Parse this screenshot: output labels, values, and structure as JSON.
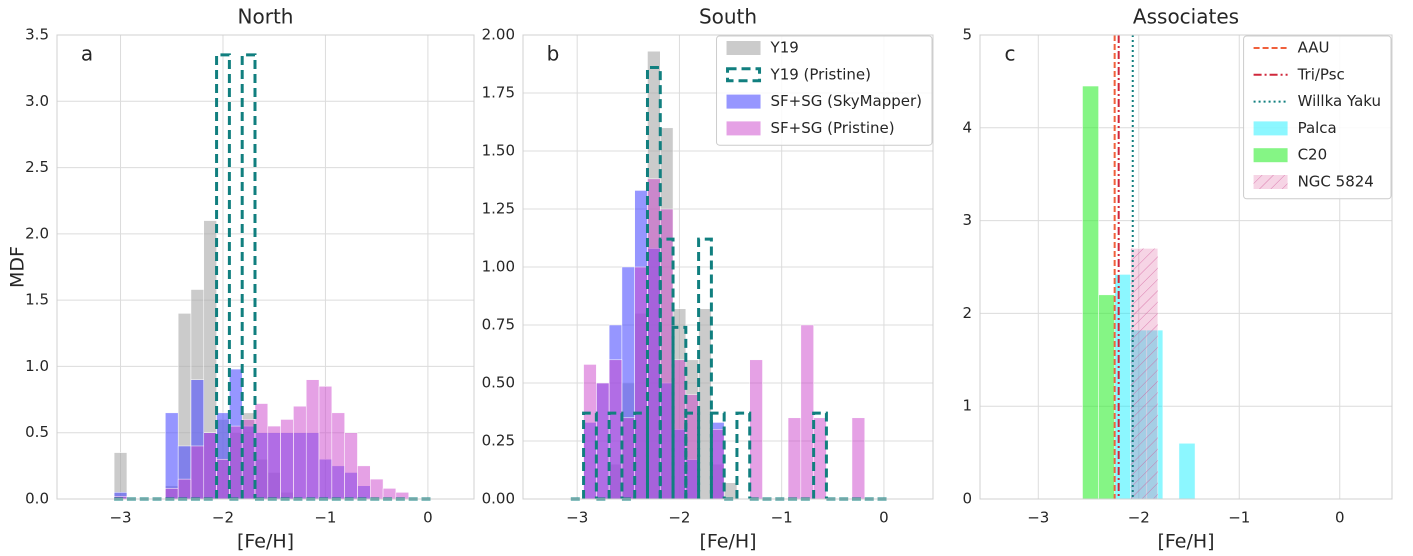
{
  "chart_data": [
    {
      "type": "histogram",
      "title": "North",
      "panel_label": "a",
      "xlabel": "[Fe/H]",
      "ylabel": "MDF",
      "bins": [
        -3.0625,
        -2.9375,
        -2.8125,
        -2.6875,
        -2.5625,
        -2.4375,
        -2.3125,
        -2.1875,
        -2.0625,
        -1.9375,
        -1.8125,
        -1.6875,
        -1.5625,
        -1.4375,
        -1.3125,
        -1.1875,
        -1.0625,
        -0.9375,
        -0.8125,
        -0.6875,
        -0.5625,
        -0.4375,
        -0.3125,
        -0.1875,
        -0.0625,
        0.0625
      ],
      "xlim": [
        -3.62,
        0.45
      ],
      "ylim": [
        0,
        3.5
      ],
      "xticks": [
        {
          "value": -3,
          "label": "−3"
        },
        {
          "value": -2,
          "label": "−2"
        },
        {
          "value": -1,
          "label": "−1"
        },
        0
      ],
      "yticks": [
        {
          "value": 0,
          "label": "0.0"
        },
        0.5,
        {
          "value": 1,
          "label": "1.0"
        },
        1.5,
        {
          "value": 2,
          "label": "2.0"
        },
        2.5,
        {
          "value": 3,
          "label": "3.0"
        },
        3.5
      ],
      "grid": true,
      "series": [
        {
          "color": "#a9a9a9",
          "alpha": 0.6,
          "histtype": "bar",
          "values": [
            0.35,
            0,
            0,
            0,
            0.1,
            1.4,
            1.58,
            2.1,
            0.6,
            0.5,
            0.65,
            0.3,
            0.2,
            0.05,
            0,
            0,
            0,
            0,
            0,
            0,
            0,
            0,
            0,
            0,
            0
          ]
        },
        {
          "color": "#5050ff",
          "alpha": 0.6,
          "histtype": "bar",
          "values": [
            0.05,
            0,
            0,
            0,
            0.65,
            0.4,
            0.9,
            0.5,
            0.65,
            0.98,
            0.55,
            0.5,
            0.5,
            0.5,
            0.5,
            0.5,
            0.3,
            0.25,
            0.2,
            0.1,
            0,
            0,
            0,
            0,
            0
          ]
        },
        {
          "color": "#cc44cc",
          "alpha": 0.5,
          "histtype": "bar",
          "values": [
            0.02,
            0,
            0,
            0,
            0.08,
            0.15,
            0.4,
            0.5,
            0.3,
            0.55,
            0.6,
            0.72,
            0.55,
            0.6,
            0.7,
            0.9,
            0.85,
            0.65,
            0.5,
            0.25,
            0.15,
            0.08,
            0.05,
            0,
            0
          ]
        },
        {
          "color": "#117f7f",
          "histtype": "step",
          "linestyle": "dashed",
          "values": [
            0,
            0,
            0,
            0,
            0,
            0,
            0,
            0,
            3.35,
            0,
            3.35,
            0,
            0,
            0,
            0,
            0,
            0,
            0,
            0,
            0,
            0,
            0,
            0,
            0,
            0
          ]
        }
      ]
    },
    {
      "type": "histogram",
      "title": "South",
      "panel_label": "b",
      "xlabel": "[Fe/H]",
      "legend": "upper right",
      "bins": [
        -3.0625,
        -2.9375,
        -2.8125,
        -2.6875,
        -2.5625,
        -2.4375,
        -2.3125,
        -2.1875,
        -2.0625,
        -1.9375,
        -1.8125,
        -1.6875,
        -1.5625,
        -1.4375,
        -1.3125,
        -1.1875,
        -1.0625,
        -0.9375,
        -0.8125,
        -0.6875,
        -0.5625,
        -0.4375,
        -0.3125,
        -0.1875,
        -0.0625,
        0.0625
      ],
      "xlim": [
        -3.53,
        0.48
      ],
      "ylim": [
        0,
        2.0
      ],
      "xticks": [
        {
          "value": -3,
          "label": "−3"
        },
        {
          "value": -2,
          "label": "−2"
        },
        {
          "value": -1,
          "label": "−1"
        },
        0
      ],
      "yticks": [
        {
          "value": 0,
          "label": "0.00"
        },
        {
          "value": 0.25,
          "label": "0.25"
        },
        {
          "value": 0.5,
          "label": "0.50"
        },
        {
          "value": 0.75,
          "label": "0.75"
        },
        {
          "value": 1,
          "label": "1.00"
        },
        {
          "value": 1.25,
          "label": "1.25"
        },
        {
          "value": 1.5,
          "label": "1.50"
        },
        {
          "value": 1.75,
          "label": "1.75"
        },
        {
          "value": 2,
          "label": "2.00"
        }
      ],
      "grid": true,
      "series": [
        {
          "name": "Y19",
          "color": "#a9a9a9",
          "alpha": 0.6,
          "histtype": "bar",
          "values": [
            0,
            0,
            0,
            0.15,
            0.5,
            0.8,
            1.93,
            1.6,
            0.82,
            0.6,
            0.82,
            0.15,
            0.07,
            0,
            0,
            0,
            0,
            0,
            0,
            0,
            0,
            0,
            0,
            0,
            0
          ]
        },
        {
          "name": "Y19 (Pristine)",
          "color": "#117f7f",
          "histtype": "step",
          "linestyle": "dashed",
          "values": [
            0,
            0.37,
            0,
            0.37,
            0,
            0.37,
            1.86,
            1.12,
            0.74,
            0.37,
            1.12,
            0.37,
            0,
            0.37,
            0,
            0,
            0,
            0,
            0,
            0.37,
            0,
            0,
            0,
            0,
            0
          ]
        },
        {
          "name": "SF+SG (SkyMapper)",
          "color": "#5050ff",
          "alpha": 0.6,
          "histtype": "bar",
          "values": [
            0,
            0.33,
            0.5,
            0.75,
            1.0,
            1.33,
            1.08,
            0.5,
            0.3,
            0.17,
            0,
            0.33,
            0,
            0,
            0,
            0,
            0,
            0,
            0,
            0,
            0,
            0,
            0,
            0,
            0
          ]
        },
        {
          "name": "SF+SG (Pristine)",
          "color": "#cc44cc",
          "alpha": 0.5,
          "histtype": "bar",
          "values": [
            0,
            0.58,
            0.5,
            0.6,
            0.35,
            1.0,
            1.38,
            1.25,
            0.6,
            0.45,
            0,
            0.3,
            0,
            0,
            0.6,
            0,
            0,
            0.35,
            0.75,
            0.35,
            0,
            0,
            0.35,
            0,
            0
          ]
        }
      ]
    },
    {
      "type": "histogram",
      "title": "Associates",
      "panel_label": "c",
      "xlabel": "[Fe/H]",
      "legend": "upper right",
      "bins": [
        -2.56,
        -2.4,
        -2.24,
        -2.08,
        -1.92,
        -1.76,
        -1.6,
        -1.44
      ],
      "xlim": [
        -3.58,
        0.52
      ],
      "ylim": [
        0,
        5
      ],
      "xticks": [
        {
          "value": -3,
          "label": "−3"
        },
        {
          "value": -2,
          "label": "−2"
        },
        {
          "value": -1,
          "label": "−1"
        },
        0
      ],
      "yticks": [
        0,
        1,
        2,
        3,
        4,
        5
      ],
      "grid": true,
      "series": [
        {
          "name": "AAU",
          "kind": "vline",
          "x": -2.24,
          "color": "#f0603c",
          "linestyle": "dashed"
        },
        {
          "name": "Tri/Psc",
          "kind": "vline",
          "x": -2.2,
          "color": "#d0283c",
          "linestyle": "dashdot"
        },
        {
          "name": "Willka Yaku",
          "kind": "vline",
          "x": -2.06,
          "color": "#117f7f",
          "linestyle": "dotted"
        },
        {
          "name": "Palca",
          "color": "#00eeff",
          "alpha": 0.45,
          "histtype": "bar",
          "values": [
            0,
            0,
            2.42,
            1.82,
            1.82,
            0,
            0.6
          ]
        },
        {
          "name": "C20",
          "color": "#33ee33",
          "alpha": 0.6,
          "histtype": "bar",
          "values": [
            4.45,
            2.2,
            0,
            0,
            0,
            0,
            0
          ]
        },
        {
          "name": "NGC 5824",
          "color": "#e070a8",
          "alpha": 0.3,
          "histtype": "bar",
          "hatch": true,
          "bins": [
            -2.08,
            -1.81
          ],
          "values": [
            2.7
          ]
        }
      ]
    }
  ]
}
